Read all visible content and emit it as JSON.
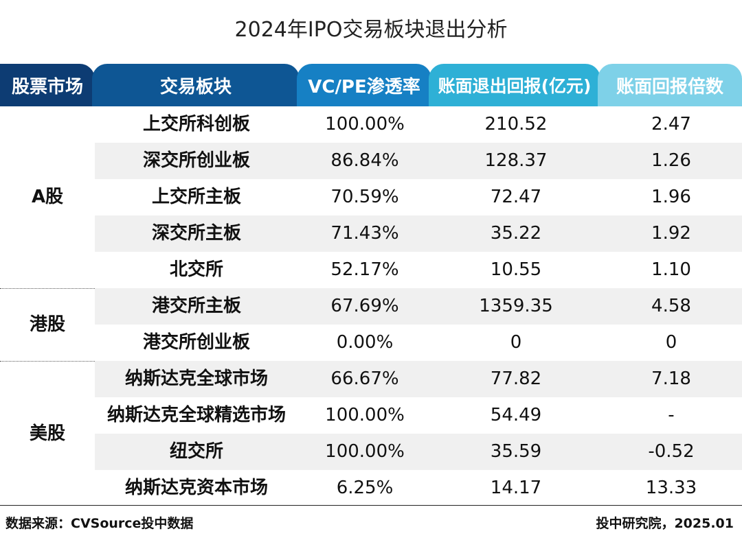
{
  "chart_data": {
    "type": "table",
    "title": "2024年IPO交易板块退出分析",
    "columns": [
      "股票市场",
      "交易板块",
      "VC/PE渗透率",
      "账面退出回报(亿元)",
      "账面回报倍数"
    ],
    "groups": [
      {
        "market": "A股",
        "rows": [
          {
            "board": "上交所科创板",
            "penetration": "100.00%",
            "exit_return": "210.52",
            "multiple": "2.47"
          },
          {
            "board": "深交所创业板",
            "penetration": "86.84%",
            "exit_return": "128.37",
            "multiple": "1.26"
          },
          {
            "board": "上交所主板",
            "penetration": "70.59%",
            "exit_return": "72.47",
            "multiple": "1.96"
          },
          {
            "board": "深交所主板",
            "penetration": "71.43%",
            "exit_return": "35.22",
            "multiple": "1.92"
          },
          {
            "board": "北交所",
            "penetration": "52.17%",
            "exit_return": "10.55",
            "multiple": "1.10"
          }
        ]
      },
      {
        "market": "港股",
        "rows": [
          {
            "board": "港交所主板",
            "penetration": "67.69%",
            "exit_return": "1359.35",
            "multiple": "4.58"
          },
          {
            "board": "港交所创业板",
            "penetration": "0.00%",
            "exit_return": "0",
            "multiple": "0"
          }
        ]
      },
      {
        "market": "美股",
        "rows": [
          {
            "board": "纳斯达克全球市场",
            "penetration": "66.67%",
            "exit_return": "77.82",
            "multiple": "7.18"
          },
          {
            "board": "纳斯达克全球精选市场",
            "penetration": "100.00%",
            "exit_return": "54.49",
            "multiple": "-"
          },
          {
            "board": "纽交所",
            "penetration": "100.00%",
            "exit_return": "35.59",
            "multiple": "-0.52"
          },
          {
            "board": "纳斯达克资本市场",
            "penetration": "6.25%",
            "exit_return": "14.17",
            "multiple": "13.33"
          }
        ]
      }
    ]
  },
  "footer": {
    "source": "数据来源：CVSource投中数据",
    "credit": "投中研究院，2025.01"
  },
  "colors": {
    "header_market": "#0d3c73",
    "header_board": "#0e5694",
    "header_penetration": "#1680c4",
    "header_return": "#2eb0d6",
    "header_multiple": "#7ed1e8",
    "row_shade": "#f0f0f0"
  }
}
